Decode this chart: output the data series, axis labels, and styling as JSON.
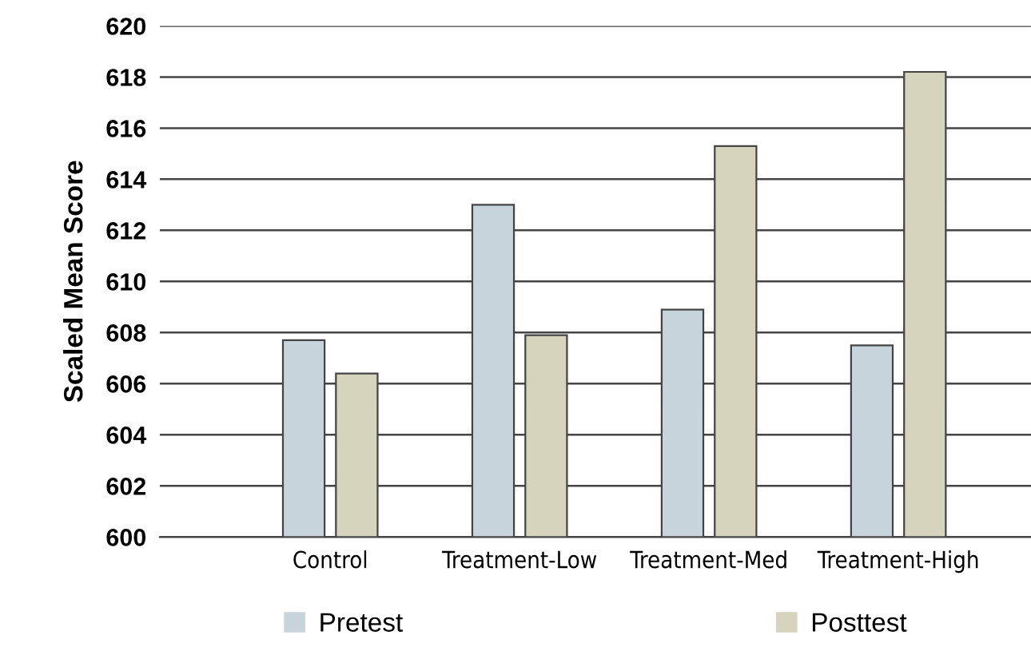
{
  "chart_data": {
    "type": "bar",
    "ylabel": "Scaled Mean Score",
    "categories": [
      "Control",
      "Treatment-Low",
      "Treatment-Med",
      "Treatment-High"
    ],
    "series": [
      {
        "name": "Pretest",
        "color": "#c8d4dc",
        "values": [
          607.7,
          613.0,
          608.9,
          607.5
        ]
      },
      {
        "name": "Posttest",
        "color": "#d6d4bc",
        "values": [
          606.4,
          607.9,
          615.3,
          618.2
        ]
      }
    ],
    "ylim": [
      600,
      620
    ],
    "yticks": [
      600,
      602,
      604,
      606,
      608,
      610,
      612,
      614,
      616,
      618,
      620
    ],
    "grid": "y",
    "legend": "bottom"
  }
}
